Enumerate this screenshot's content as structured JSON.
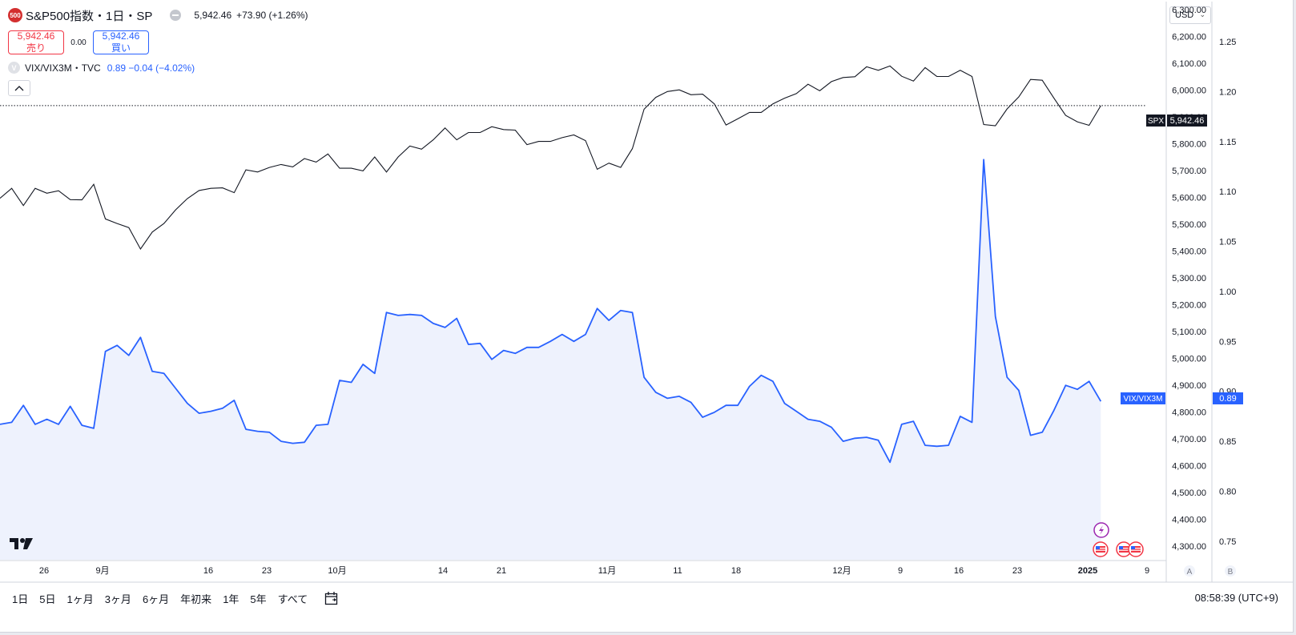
{
  "header": {
    "logo_text": "500",
    "symbol_title": "S&P500指数・1日・SP",
    "price": "5,942.46",
    "change": "+73.90 (+1.26%)"
  },
  "trade": {
    "sell_price": "5,942.46",
    "sell_label": "売り",
    "spread": "0.00",
    "buy_price": "5,942.46",
    "buy_label": "買い"
  },
  "vix_legend": {
    "icon_letter": "V",
    "name": "VIX/VIX3M・TVC",
    "values": "0.89  −0.04 (−4.02%)"
  },
  "currency": "USD",
  "price_badges": {
    "spx_tag": "SPX",
    "spx_value": "5,942.46",
    "vix_tag": "VIX/VIX3M",
    "vix_value": "0.89"
  },
  "scale_buttons": [
    "A",
    "B"
  ],
  "timeframes": [
    "1日",
    "5日",
    "1ヶ月",
    "3ヶ月",
    "6ヶ月",
    "年初来",
    "1年",
    "5年",
    "すべて"
  ],
  "clock": "08:58:39 (UTC+9)",
  "colors": {
    "spx_line": "#131722",
    "vix_line": "#2962ff",
    "vix_fill": "#eef2fd",
    "sell": "#f23645",
    "buy": "#2962ff",
    "event_purple": "#9c27b0",
    "event_red": "#f23645"
  },
  "chart_data": {
    "type": "line",
    "x_tick_labels": [
      "26",
      "9月",
      "16",
      "23",
      "10月",
      "14",
      "21",
      "11月",
      "11",
      "18",
      "12月",
      "9",
      "16",
      "23",
      "2025",
      "9"
    ],
    "left_axis": {
      "name": "S&P500",
      "ticks": [
        "6,300.00",
        "6,200.00",
        "6,100.00",
        "6,000.00",
        "5,900.00",
        "5,800.00",
        "5,700.00",
        "5,600.00",
        "5,500.00",
        "5,400.00",
        "5,300.00",
        "5,200.00",
        "5,100.00",
        "5,000.00",
        "4,900.00",
        "4,800.00",
        "4,700.00",
        "4,600.00",
        "4,500.00",
        "4,400.00",
        "4,300.00"
      ],
      "ylim": [
        4250,
        6330
      ]
    },
    "right_axis": {
      "name": "VIX/VIX3M",
      "ticks": [
        "1.25",
        "1.20",
        "1.15",
        "1.10",
        "1.05",
        "1.00",
        "0.95",
        "0.90",
        "0.85",
        "0.80",
        "0.75"
      ],
      "ylim": [
        0.7314,
        1.2902
      ]
    },
    "series": [
      {
        "name": "SPX",
        "values": [
          5597,
          5634,
          5570,
          5634,
          5616,
          5625,
          5592,
          5591,
          5649,
          5520,
          5503,
          5488,
          5408,
          5471,
          5503,
          5554,
          5596,
          5626,
          5634,
          5636,
          5618,
          5703,
          5695,
          5712,
          5723,
          5714,
          5745,
          5732,
          5762,
          5709,
          5709,
          5699,
          5751,
          5695,
          5751,
          5792,
          5780,
          5815,
          5859,
          5815,
          5842,
          5842,
          5864,
          5853,
          5851,
          5797,
          5809,
          5809,
          5823,
          5833,
          5812,
          5705,
          5728,
          5712,
          5782,
          5929,
          5973,
          5995,
          6001,
          5983,
          5985,
          5949,
          5870,
          5893,
          5917,
          5917,
          5949,
          5970,
          5987,
          6022,
          5998,
          6032,
          6047,
          6050,
          6087,
          6074,
          6090,
          6052,
          6034,
          6084,
          6051,
          6051,
          6074,
          6051,
          5872,
          5867,
          5930,
          5975,
          6040,
          6037,
          5970,
          5906,
          5882,
          5869,
          5942
        ]
      },
      {
        "name": "VIX/VIX3M",
        "values": [
          0.867,
          0.869,
          0.886,
          0.867,
          0.872,
          0.867,
          0.885,
          0.866,
          0.863,
          0.94,
          0.946,
          0.936,
          0.954,
          0.92,
          0.918,
          0.903,
          0.888,
          0.878,
          0.88,
          0.883,
          0.891,
          0.862,
          0.86,
          0.859,
          0.85,
          0.848,
          0.849,
          0.866,
          0.867,
          0.911,
          0.909,
          0.927,
          0.918,
          0.979,
          0.976,
          0.977,
          0.976,
          0.968,
          0.964,
          0.973,
          0.947,
          0.948,
          0.932,
          0.941,
          0.938,
          0.944,
          0.944,
          0.95,
          0.957,
          0.95,
          0.957,
          0.983,
          0.971,
          0.981,
          0.979,
          0.914,
          0.899,
          0.893,
          0.895,
          0.889,
          0.874,
          0.879,
          0.886,
          0.886,
          0.905,
          0.916,
          0.91,
          0.888,
          0.88,
          0.872,
          0.87,
          0.864,
          0.85,
          0.853,
          0.854,
          0.851,
          0.829,
          0.867,
          0.87,
          0.846,
          0.845,
          0.846,
          0.875,
          0.869,
          1.132,
          0.975,
          0.914,
          0.901,
          0.856,
          0.859,
          0.881,
          0.906,
          0.902,
          0.91,
          0.89
        ]
      }
    ],
    "current_price_line": 5942.46,
    "grid": false,
    "legend": "top-left"
  }
}
